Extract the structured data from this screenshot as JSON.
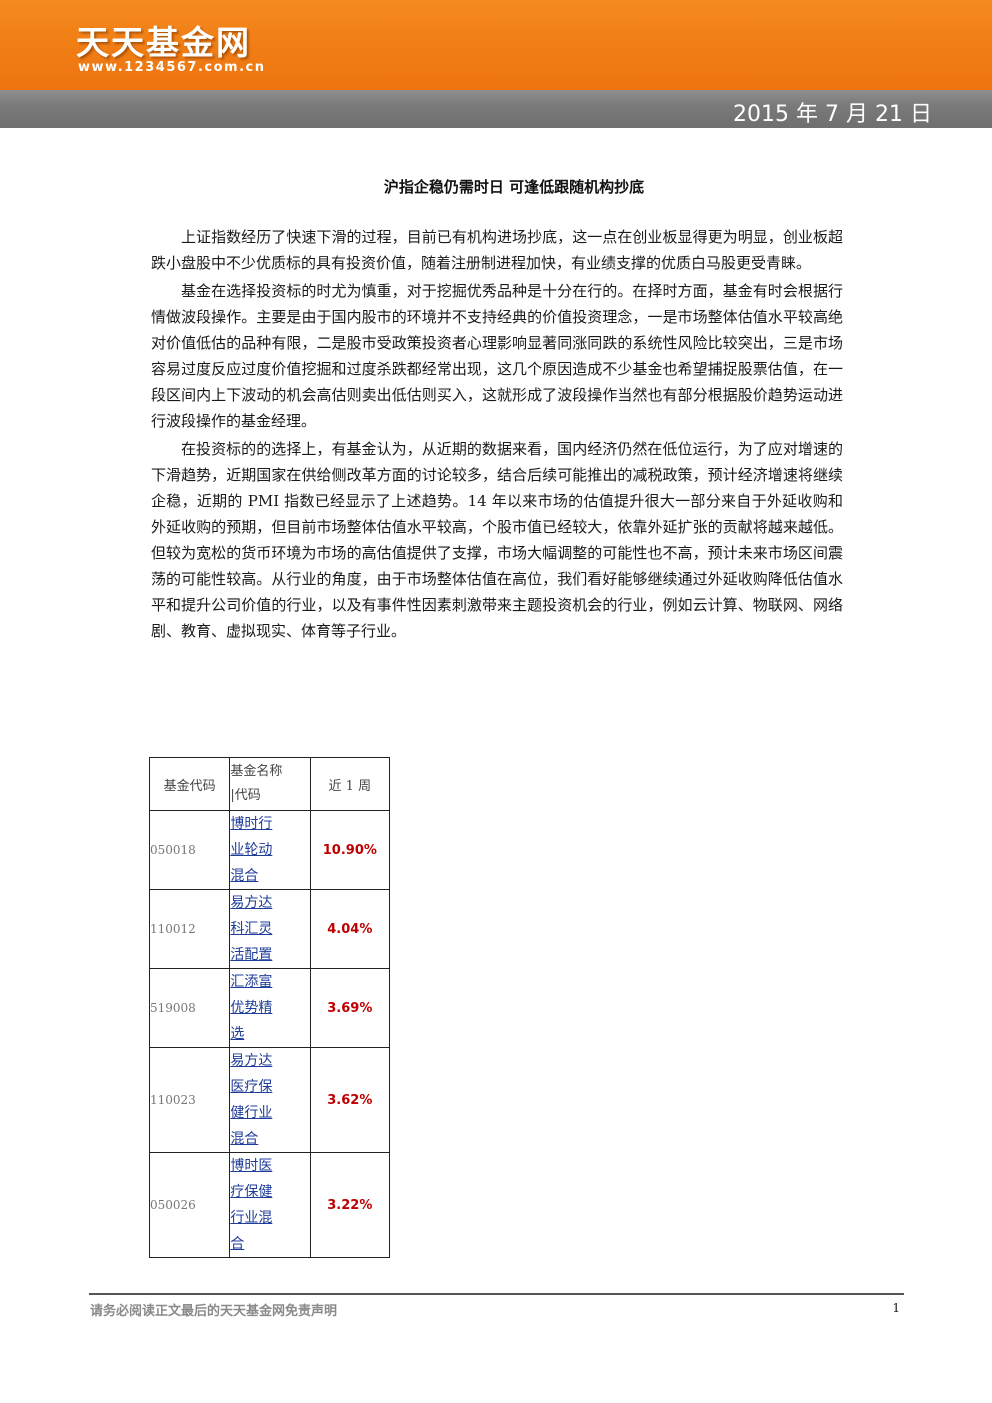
{
  "header": {
    "logo_text": "天天基金网",
    "logo_url": "www.1234567.com.cn",
    "date": "2015 年 7 月 21 日"
  },
  "article": {
    "title": "沪指企稳仍需时日 可逢低跟随机构抄底",
    "paragraphs": [
      "上证指数经历了快速下滑的过程，目前已有机构进场抄底，这一点在创业板显得更为明显，创业板超跌小盘股中不少优质标的具有投资价值，随着注册制进程加快，有业绩支撑的优质白马股更受青睐。",
      "基金在选择投资标的时尤为慎重，对于挖掘优秀品种是十分在行的。在择时方面，基金有时会根据行情做波段操作。主要是由于国内股市的环境并不支持经典的价值投资理念，一是市场整体估值水平较高绝对价值低估的品种有限，二是股市受政策投资者心理影响显著同涨同跌的系统性风险比较突出，三是市场容易过度反应过度价值挖掘和过度杀跌都经常出现，这几个原因造成不少基金也希望捕捉股票估值，在一段区间内上下波动的机会高估则卖出低估则买入，这就形成了波段操作当然也有部分根据股价趋势运动进行波段操作的基金经理。",
      "在投资标的的选择上，有基金认为，从近期的数据来看，国内经济仍然在低位运行，为了应对增速的下滑趋势，近期国家在供给侧改革方面的讨论较多，结合后续可能推出的减税政策，预计经济增速将继续企稳，近期的 PMI 指数已经显示了上述趋势。14 年以来市场的估值提升很大一部分来自于外延收购和外延收购的预期，但目前市场整体估值水平较高，个股市值已经较大，依靠外延扩张的贡献将越来越低。但较为宽松的货币环境为市场的高估值提供了支撑，市场大幅调整的可能性也不高，预计未来市场区间震荡的可能性较高。从行业的角度，由于市场整体估值在高位，我们看好能够继续通过外延收购降低估值水平和提升公司价值的行业，以及有事件性因素刺激带来主题投资机会的行业，例如云计算、物联网、网络剧、教育、虚拟现实、体育等子行业。"
    ]
  },
  "fund_table": {
    "headers": {
      "code": "基金代码",
      "name_line1": "基金名称",
      "name_line2": "|代码",
      "return": "近 1 周"
    },
    "rows": [
      {
        "code": "050018",
        "name_lines": [
          "博时行",
          "业轮动",
          "混合"
        ],
        "return": "10.90%"
      },
      {
        "code": "110012",
        "name_lines": [
          "易方达",
          "科汇灵",
          "活配置"
        ],
        "return": "4.04%"
      },
      {
        "code": "519008",
        "name_lines": [
          "汇添富",
          "优势精",
          "选"
        ],
        "return": "3.69%"
      },
      {
        "code": "110023",
        "name_lines": [
          "易方达",
          "医疗保",
          "健行业",
          "混合"
        ],
        "return": "3.62%"
      },
      {
        "code": "050026",
        "name_lines": [
          "博时医",
          "疗保健",
          "行业混",
          "合"
        ],
        "return": "3.22%"
      }
    ]
  },
  "footer": {
    "disclaimer": "请务必阅读正文最后的天天基金网免责声明",
    "page_number": "1"
  },
  "colors": {
    "header_orange": "#f07d14",
    "header_bar_gray": "#7a7a7a",
    "return_red": "#c00000",
    "link_blue": "#1f3d99"
  }
}
